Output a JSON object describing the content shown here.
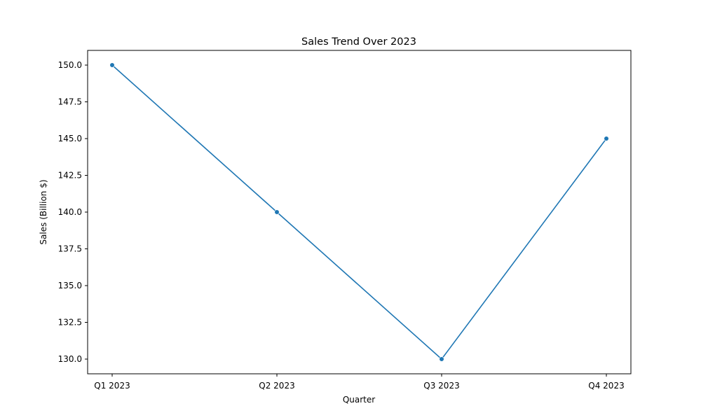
{
  "chart_data": {
    "type": "line",
    "title": "Sales Trend Over 2023",
    "xlabel": "Quarter",
    "ylabel": "Sales (Billion $)",
    "categories": [
      "Q1 2023",
      "Q2 2023",
      "Q3 2023",
      "Q4 2023"
    ],
    "series": [
      {
        "values": [
          150.0,
          140.0,
          130.0,
          145.0
        ],
        "color": "#1f77b4",
        "marker": "circle"
      }
    ],
    "ylim": [
      129.0,
      151.0
    ],
    "yticks": [
      130.0,
      132.5,
      135.0,
      137.5,
      140.0,
      142.5,
      145.0,
      147.5,
      150.0
    ],
    "ytick_labels": [
      "130.0",
      "132.5",
      "135.0",
      "137.5",
      "140.0",
      "142.5",
      "145.0",
      "147.5",
      "150.0"
    ],
    "grid": false,
    "legend": "none"
  }
}
